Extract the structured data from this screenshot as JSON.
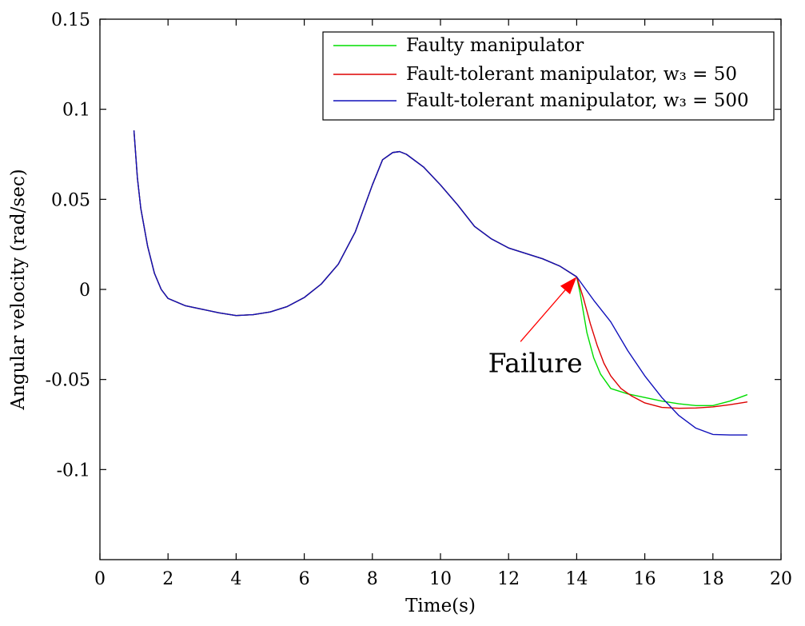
{
  "chart_data": {
    "type": "line",
    "title": "",
    "xlabel": "Time(s)",
    "ylabel": "Angular velocity (rad/sec)",
    "xlim": [
      0,
      20
    ],
    "ylim": [
      -0.15,
      0.15
    ],
    "grid": false,
    "legend_position": "top-right",
    "x_ticks": [
      {
        "value": 0,
        "label": "0"
      },
      {
        "value": 2,
        "label": "2"
      },
      {
        "value": 4,
        "label": "4"
      },
      {
        "value": 6,
        "label": "6"
      },
      {
        "value": 8,
        "label": "8"
      },
      {
        "value": 10,
        "label": "10"
      },
      {
        "value": 12,
        "label": "12"
      },
      {
        "value": 14,
        "label": "14"
      },
      {
        "value": 16,
        "label": "16"
      },
      {
        "value": 18,
        "label": "18"
      },
      {
        "value": 20,
        "label": "20"
      }
    ],
    "y_ticks": [
      {
        "value": 0.15,
        "label": "0.15"
      },
      {
        "value": 0.1,
        "label": "0.1"
      },
      {
        "value": 0.05,
        "label": "0.05"
      },
      {
        "value": 0,
        "label": "0"
      },
      {
        "value": -0.05,
        "label": "-0.05"
      },
      {
        "value": -0.1,
        "label": "-0.1"
      }
    ],
    "annotation": {
      "text": "Failure",
      "arrow_to": [
        14,
        0.007
      ],
      "arrow_from": [
        12.35,
        -0.029
      ],
      "text_at": [
        11.4,
        -0.046
      ]
    },
    "series": [
      {
        "name": "Faulty manipulator",
        "color": "#00dd00",
        "x": [
          1,
          1.1,
          1.2,
          1.4,
          1.6,
          1.8,
          2,
          2.5,
          3,
          3.5,
          4,
          4.5,
          5,
          5.5,
          6,
          6.5,
          7,
          7.5,
          8,
          8.3,
          8.6,
          8.8,
          9,
          9.5,
          10,
          10.5,
          11,
          11.5,
          12,
          12.5,
          13,
          13.5,
          14,
          14.1,
          14.2,
          14.3,
          14.5,
          14.7,
          15,
          15.5,
          16,
          16.5,
          17,
          17.5,
          18,
          18.5,
          19
        ],
        "y": [
          0.088,
          0.062,
          0.045,
          0.024,
          0.009,
          0.0,
          -0.005,
          -0.009,
          -0.011,
          -0.013,
          -0.0145,
          -0.014,
          -0.0125,
          -0.0095,
          -0.0045,
          0.003,
          0.014,
          0.032,
          0.058,
          0.072,
          0.076,
          0.0765,
          0.075,
          0.068,
          0.058,
          0.047,
          0.035,
          0.028,
          0.023,
          0.02,
          0.017,
          0.013,
          0.007,
          -0.002,
          -0.013,
          -0.024,
          -0.038,
          -0.047,
          -0.055,
          -0.058,
          -0.06,
          -0.062,
          -0.0635,
          -0.0645,
          -0.0645,
          -0.062,
          -0.0585
        ]
      },
      {
        "name": "Fault-tolerant manipulator, w₃ = 50",
        "color": "#dd0000",
        "x": [
          1,
          1.1,
          1.2,
          1.4,
          1.6,
          1.8,
          2,
          2.5,
          3,
          3.5,
          4,
          4.5,
          5,
          5.5,
          6,
          6.5,
          7,
          7.5,
          8,
          8.3,
          8.6,
          8.8,
          9,
          9.5,
          10,
          10.5,
          11,
          11.5,
          12,
          12.5,
          13,
          13.5,
          14,
          14.2,
          14.4,
          14.6,
          14.8,
          15,
          15.3,
          15.6,
          16,
          16.5,
          17,
          17.5,
          18,
          18.5,
          19
        ],
        "y": [
          0.088,
          0.062,
          0.045,
          0.024,
          0.009,
          0.0,
          -0.005,
          -0.009,
          -0.011,
          -0.013,
          -0.0145,
          -0.014,
          -0.0125,
          -0.0095,
          -0.0045,
          0.003,
          0.014,
          0.032,
          0.058,
          0.072,
          0.076,
          0.0765,
          0.075,
          0.068,
          0.058,
          0.047,
          0.035,
          0.028,
          0.023,
          0.02,
          0.017,
          0.013,
          0.007,
          -0.005,
          -0.019,
          -0.031,
          -0.041,
          -0.048,
          -0.055,
          -0.059,
          -0.063,
          -0.0655,
          -0.066,
          -0.0658,
          -0.0652,
          -0.064,
          -0.0625
        ]
      },
      {
        "name": "Fault-tolerant manipulator, w₃ = 500",
        "color": "#1010bb",
        "x": [
          1,
          1.1,
          1.2,
          1.4,
          1.6,
          1.8,
          2,
          2.5,
          3,
          3.5,
          4,
          4.5,
          5,
          5.5,
          6,
          6.5,
          7,
          7.5,
          8,
          8.3,
          8.6,
          8.8,
          9,
          9.5,
          10,
          10.5,
          11,
          11.5,
          12,
          12.5,
          13,
          13.5,
          14,
          14.5,
          15,
          15.5,
          16,
          16.5,
          17,
          17.5,
          18,
          18.5,
          19
        ],
        "y": [
          0.088,
          0.062,
          0.045,
          0.024,
          0.009,
          0.0,
          -0.005,
          -0.009,
          -0.011,
          -0.013,
          -0.0145,
          -0.014,
          -0.0125,
          -0.0095,
          -0.0045,
          0.003,
          0.014,
          0.032,
          0.058,
          0.072,
          0.076,
          0.0765,
          0.075,
          0.068,
          0.058,
          0.047,
          0.035,
          0.028,
          0.023,
          0.02,
          0.017,
          0.013,
          0.007,
          -0.006,
          -0.018,
          -0.034,
          -0.048,
          -0.06,
          -0.07,
          -0.077,
          -0.0805,
          -0.0808,
          -0.0808
        ]
      }
    ]
  }
}
